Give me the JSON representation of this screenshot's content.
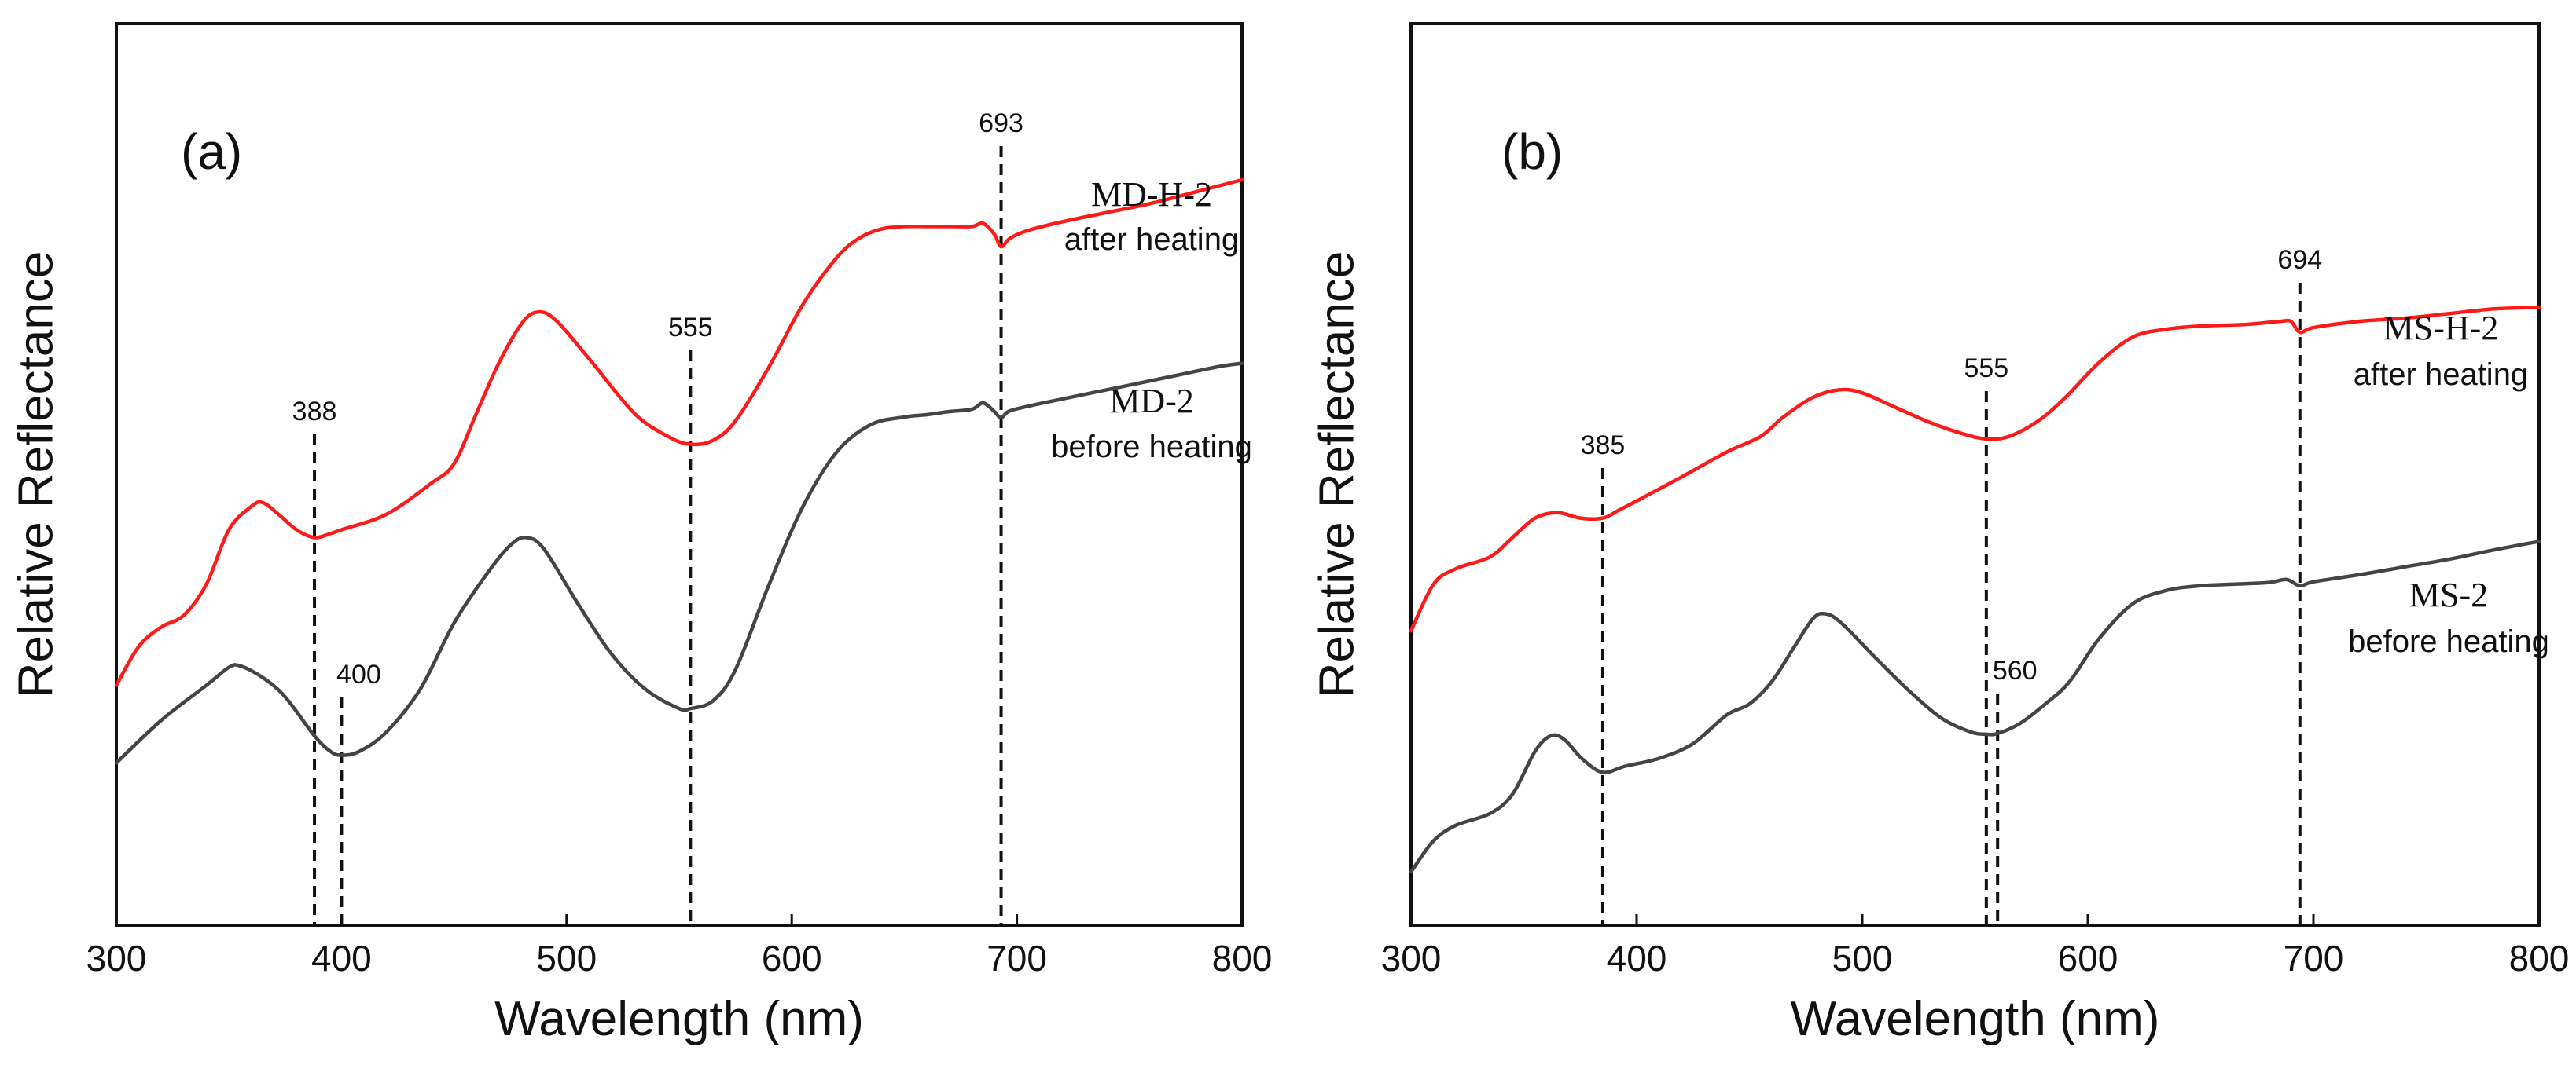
{
  "colors": {
    "after_heating": "#ff1a1a",
    "before_heating": "#444444",
    "axis": "#111111",
    "background": "#ffffff"
  },
  "chart_data": [
    {
      "type": "line",
      "panel_label": "(a)",
      "xlabel": "Wavelength (nm)",
      "ylabel": "Relative Reflectance",
      "xlim": [
        300,
        800
      ],
      "ylim": [
        0,
        100
      ],
      "x_ticks": [
        "300",
        "400",
        "500",
        "600",
        "700",
        "800"
      ],
      "y_ticks_shown": false,
      "grid": false,
      "series": [
        {
          "name": "MD-H-2",
          "note": "after heating",
          "color": "#ff1a1a",
          "points": [
            [
              300,
              25
            ],
            [
              310,
              30
            ],
            [
              320,
              32.5
            ],
            [
              330,
              34
            ],
            [
              340,
              38
            ],
            [
              350,
              45
            ],
            [
              360,
              48
            ],
            [
              365,
              48.5
            ],
            [
              372,
              47
            ],
            [
              380,
              45
            ],
            [
              388,
              44
            ],
            [
              395,
              44.5
            ],
            [
              400,
              45
            ],
            [
              420,
              47
            ],
            [
              440,
              51
            ],
            [
              450,
              53.5
            ],
            [
              460,
              60
            ],
            [
              470,
              66.5
            ],
            [
              480,
              71.5
            ],
            [
              487,
              73
            ],
            [
              495,
              72
            ],
            [
              510,
              67
            ],
            [
              530,
              60
            ],
            [
              545,
              57
            ],
            [
              555,
              56
            ],
            [
              565,
              56.5
            ],
            [
              575,
              59
            ],
            [
              590,
              66
            ],
            [
              605,
              74
            ],
            [
              620,
              80
            ],
            [
              630,
              82.5
            ],
            [
              640,
              83.7
            ],
            [
              650,
              84
            ],
            [
              660,
              84
            ],
            [
              670,
              84
            ],
            [
              680,
              84
            ],
            [
              685,
              84.4
            ],
            [
              690,
              83
            ],
            [
              693,
              81.4
            ],
            [
              697,
              82.5
            ],
            [
              705,
              83.5
            ],
            [
              720,
              84.6
            ],
            [
              740,
              85.8
            ],
            [
              760,
              87
            ],
            [
              780,
              88.5
            ],
            [
              800,
              90
            ]
          ]
        },
        {
          "name": "MD-2",
          "note": "before heating",
          "color": "#444444",
          "points": [
            [
              300,
              15
            ],
            [
              320,
              20.5
            ],
            [
              340,
              25
            ],
            [
              350,
              27.3
            ],
            [
              355,
              27.5
            ],
            [
              365,
              26
            ],
            [
              375,
              23.5
            ],
            [
              388,
              18.5
            ],
            [
              395,
              16.5
            ],
            [
              400,
              16
            ],
            [
              408,
              16.5
            ],
            [
              420,
              19
            ],
            [
              435,
              24.5
            ],
            [
              450,
              33
            ],
            [
              465,
              39.5
            ],
            [
              475,
              43
            ],
            [
              482,
              44
            ],
            [
              490,
              42.5
            ],
            [
              505,
              35.5
            ],
            [
              520,
              29
            ],
            [
              535,
              24.5
            ],
            [
              550,
              22
            ],
            [
              555,
              22
            ],
            [
              565,
              23
            ],
            [
              575,
              27
            ],
            [
              590,
              38
            ],
            [
              605,
              48
            ],
            [
              620,
              55
            ],
            [
              635,
              58.5
            ],
            [
              650,
              59.5
            ],
            [
              660,
              59.8
            ],
            [
              670,
              60.2
            ],
            [
              680,
              60.5
            ],
            [
              685,
              61.3
            ],
            [
              690,
              60.2
            ],
            [
              693,
              59.4
            ],
            [
              697,
              60.3
            ],
            [
              710,
              61.2
            ],
            [
              730,
              62.4
            ],
            [
              750,
              63.6
            ],
            [
              770,
              64.8
            ],
            [
              790,
              66
            ],
            [
              800,
              66.4
            ]
          ]
        }
      ],
      "annotations": [
        {
          "label": "388",
          "x": 388
        },
        {
          "label": "400",
          "x": 400
        },
        {
          "label": "555",
          "x": 555
        },
        {
          "label": "693",
          "x": 693
        }
      ]
    },
    {
      "type": "line",
      "panel_label": "(b)",
      "xlabel": "Wavelength (nm)",
      "ylabel": "Relative Reflectance",
      "xlim": [
        300,
        800
      ],
      "ylim": [
        0,
        100
      ],
      "x_ticks": [
        "300",
        "400",
        "500",
        "600",
        "700",
        "800"
      ],
      "y_ticks_shown": false,
      "grid": false,
      "series": [
        {
          "name": "MS-H-2",
          "note": "after heating",
          "color": "#ff1a1a",
          "points": [
            [
              300,
              32
            ],
            [
              310,
              38
            ],
            [
              320,
              40
            ],
            [
              335,
              41.5
            ],
            [
              345,
              44
            ],
            [
              355,
              46.5
            ],
            [
              365,
              47.2
            ],
            [
              375,
              46.5
            ],
            [
              385,
              46.5
            ],
            [
              392,
              47.5
            ],
            [
              400,
              48.7
            ],
            [
              420,
              51.8
            ],
            [
              440,
              55
            ],
            [
              455,
              57
            ],
            [
              465,
              59.5
            ],
            [
              478,
              62
            ],
            [
              490,
              63
            ],
            [
              500,
              62.6
            ],
            [
              515,
              60.7
            ],
            [
              530,
              58.8
            ],
            [
              545,
              57.3
            ],
            [
              555,
              56.7
            ],
            [
              565,
              57
            ],
            [
              578,
              59
            ],
            [
              590,
              62
            ],
            [
              605,
              66.5
            ],
            [
              620,
              69.8
            ],
            [
              635,
              70.8
            ],
            [
              650,
              71.2
            ],
            [
              670,
              71.4
            ],
            [
              685,
              71.8
            ],
            [
              690,
              71.8
            ],
            [
              694,
              70.4
            ],
            [
              700,
              71
            ],
            [
              720,
              71.8
            ],
            [
              740,
              72.2
            ],
            [
              760,
              72.8
            ],
            [
              780,
              73.4
            ],
            [
              800,
              73.6
            ]
          ]
        },
        {
          "name": "MS-2",
          "note": "before heating",
          "color": "#444444",
          "points": [
            [
              300,
              1
            ],
            [
              310,
              5
            ],
            [
              320,
              7
            ],
            [
              335,
              8.5
            ],
            [
              345,
              11
            ],
            [
              355,
              16.5
            ],
            [
              362,
              18.5
            ],
            [
              368,
              18
            ],
            [
              376,
              15.5
            ],
            [
              385,
              13.8
            ],
            [
              395,
              14.6
            ],
            [
              410,
              15.6
            ],
            [
              425,
              17.5
            ],
            [
              440,
              21.2
            ],
            [
              450,
              22.6
            ],
            [
              460,
              25.5
            ],
            [
              470,
              30
            ],
            [
              478,
              33.5
            ],
            [
              483,
              34.2
            ],
            [
              490,
              33.2
            ],
            [
              505,
              28.8
            ],
            [
              520,
              24.5
            ],
            [
              535,
              20.8
            ],
            [
              548,
              19
            ],
            [
              555,
              18.7
            ],
            [
              560,
              18.8
            ],
            [
              570,
              20.1
            ],
            [
              582,
              22.8
            ],
            [
              592,
              25.5
            ],
            [
              605,
              31
            ],
            [
              620,
              35.5
            ],
            [
              635,
              37.2
            ],
            [
              650,
              37.8
            ],
            [
              665,
              38
            ],
            [
              680,
              38.2
            ],
            [
              688,
              38.6
            ],
            [
              694,
              37.8
            ],
            [
              700,
              38.3
            ],
            [
              720,
              39.2
            ],
            [
              740,
              40.2
            ],
            [
              760,
              41.2
            ],
            [
              780,
              42.4
            ],
            [
              800,
              43.5
            ]
          ]
        }
      ],
      "annotations": [
        {
          "label": "385",
          "x": 385
        },
        {
          "label": "555",
          "x": 555
        },
        {
          "label": "560",
          "x": 560
        },
        {
          "label": "694",
          "x": 694
        }
      ]
    }
  ]
}
